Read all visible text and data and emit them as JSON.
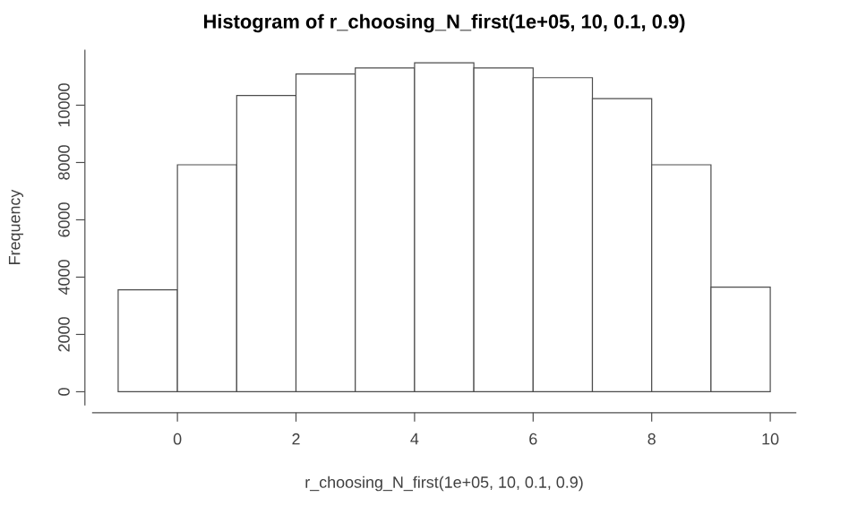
{
  "chart_data": {
    "type": "histogram",
    "title": "Histogram of r_choosing_N_first(1e+05, 10, 0.1, 0.9)",
    "xlabel": "r_choosing_N_first(1e+05, 10, 0.1, 0.9)",
    "ylabel": "Frequency",
    "bins": [
      -1,
      0,
      1,
      2,
      3,
      4,
      5,
      6,
      7,
      8,
      9,
      10
    ],
    "values": [
      3560,
      7920,
      10340,
      11090,
      11300,
      11480,
      11300,
      10960,
      10230,
      7920,
      3650
    ],
    "color": "#ffffff",
    "xlim": [
      -1.44,
      10.44
    ],
    "ylim": [
      -480,
      11940
    ],
    "xticks": [
      0,
      2,
      4,
      6,
      8,
      10
    ],
    "yticks": [
      0,
      2000,
      4000,
      6000,
      8000,
      10000
    ]
  }
}
